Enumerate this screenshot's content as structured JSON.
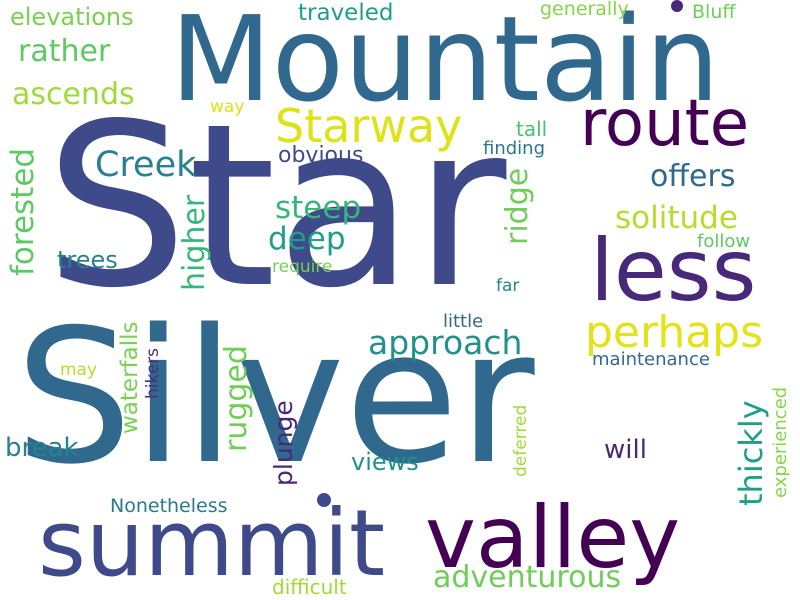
{
  "words": [
    {
      "text": "Star",
      "color": "#3e4a89"
    },
    {
      "text": "Silver",
      "color": "#31688e"
    },
    {
      "text": "Mountain",
      "color": "#31688e"
    },
    {
      "text": "summit",
      "color": "#3e4a89"
    },
    {
      "text": "valley",
      "color": "#440154"
    },
    {
      "text": "less",
      "color": "#482878"
    },
    {
      "text": "route",
      "color": "#440154"
    },
    {
      "text": "Starway",
      "color": "#dde318"
    },
    {
      "text": "perhaps",
      "color": "#e2e418"
    },
    {
      "text": "Creek",
      "color": "#26828e"
    },
    {
      "text": "offers",
      "color": "#31688e"
    },
    {
      "text": "solitude",
      "color": "#b5de2b"
    },
    {
      "text": "approach",
      "color": "#21918c"
    },
    {
      "text": "adventurous",
      "color": "#6ece58"
    },
    {
      "text": "rugged",
      "color": "#6ece58"
    },
    {
      "text": "thickly",
      "color": "#1f9e89"
    },
    {
      "text": "forested",
      "color": "#5ec962"
    },
    {
      "text": "higher",
      "color": "#35b779"
    },
    {
      "text": "ridge",
      "color": "#6ece58"
    },
    {
      "text": "deep",
      "color": "#1f9e89"
    },
    {
      "text": "steep",
      "color": "#35b779"
    },
    {
      "text": "rather",
      "color": "#5ec962"
    },
    {
      "text": "ascends",
      "color": "#a0da39"
    },
    {
      "text": "elevations",
      "color": "#7ad151"
    },
    {
      "text": "traveled",
      "color": "#1f9e89"
    },
    {
      "text": "generally",
      "color": "#86d549"
    },
    {
      "text": "Bluff",
      "color": "#6ece58"
    },
    {
      "text": "way",
      "color": "#dde318"
    },
    {
      "text": "tall",
      "color": "#4ac16d"
    },
    {
      "text": "finding",
      "color": "#2a788e"
    },
    {
      "text": "obvious",
      "color": "#3e4a89"
    },
    {
      "text": "trees",
      "color": "#26828e"
    },
    {
      "text": "follow",
      "color": "#5ec962"
    },
    {
      "text": "require",
      "color": "#7ad151"
    },
    {
      "text": "far",
      "color": "#26828e"
    },
    {
      "text": "little",
      "color": "#31688e"
    },
    {
      "text": "maintenance",
      "color": "#31688e"
    },
    {
      "text": "plunge",
      "color": "#482878"
    },
    {
      "text": "waterfalls",
      "color": "#7ad151"
    },
    {
      "text": "hikers",
      "color": "#46327e"
    },
    {
      "text": "may",
      "color": "#b5de2b"
    },
    {
      "text": "break",
      "color": "#26828e"
    },
    {
      "text": "views",
      "color": "#21918c"
    },
    {
      "text": "will",
      "color": "#482878"
    },
    {
      "text": "Nonetheless",
      "color": "#2a788e"
    },
    {
      "text": "deferred",
      "color": "#a0da39"
    },
    {
      "text": "experienced",
      "color": "#86d549"
    },
    {
      "text": "difficult",
      "color": "#a0da39"
    }
  ],
  "dots": [
    {
      "color": "#3e4a89"
    },
    {
      "color": "#482878"
    }
  ]
}
